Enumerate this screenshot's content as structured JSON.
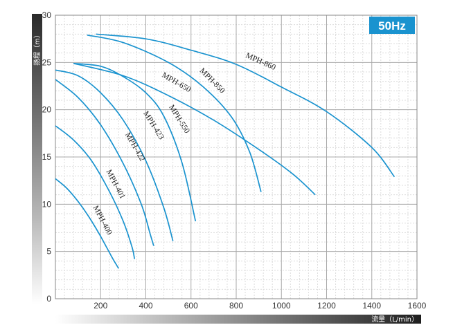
{
  "chart_data": {
    "type": "line",
    "title": "",
    "frequency_badge": "50Hz",
    "xlabel": "流量（L/min）",
    "ylabel": "扬程（m）",
    "xlim": [
      0,
      1600
    ],
    "ylim": [
      0,
      30
    ],
    "x_ticks": [
      "200",
      "400",
      "600",
      "800",
      "1000",
      "1200",
      "1400",
      "1600"
    ],
    "y_ticks": [
      "0",
      "5",
      "10",
      "15",
      "20",
      "25",
      "30"
    ],
    "grid": true,
    "series_color": "#1a93cf",
    "series": [
      {
        "name": "MPH-400",
        "x": [
          0,
          50,
          100,
          150,
          200,
          250,
          280
        ],
        "y": [
          12.7,
          11.7,
          10.3,
          8.6,
          6.6,
          4.4,
          3.2
        ]
      },
      {
        "name": "MPH-401",
        "x": [
          0,
          80,
          160,
          240,
          300,
          340,
          350
        ],
        "y": [
          18.3,
          16.8,
          14.6,
          11.3,
          8.2,
          5.4,
          4.2
        ]
      },
      {
        "name": "MPH-422",
        "x": [
          0,
          100,
          200,
          300,
          380,
          420,
          435
        ],
        "y": [
          23.2,
          21.3,
          18.4,
          14.3,
          10.0,
          6.8,
          5.6
        ]
      },
      {
        "name": "MPH-423",
        "x": [
          0,
          100,
          200,
          300,
          400,
          480,
          520
        ],
        "y": [
          24.2,
          23.6,
          21.8,
          18.9,
          14.6,
          9.6,
          6.1
        ]
      },
      {
        "name": "MPH-550",
        "x": [
          80,
          200,
          300,
          400,
          480,
          560,
          620
        ],
        "y": [
          24.9,
          24.6,
          23.5,
          21.8,
          19.3,
          14.4,
          8.2
        ]
      },
      {
        "name": "MPH-650",
        "x": [
          80,
          300,
          500,
          700,
          900,
          1050,
          1150
        ],
        "y": [
          24.9,
          23.6,
          21.5,
          18.9,
          15.8,
          13.2,
          11.0
        ]
      },
      {
        "name": "MPH-850",
        "x": [
          140,
          300,
          500,
          650,
          780,
          860,
          910
        ],
        "y": [
          27.9,
          27.1,
          25.0,
          22.5,
          19.2,
          15.5,
          11.3
        ]
      },
      {
        "name": "MPH-860",
        "x": [
          180,
          400,
          600,
          800,
          1000,
          1200,
          1400,
          1500
        ],
        "y": [
          28.0,
          27.5,
          26.3,
          24.8,
          22.4,
          19.8,
          16.0,
          12.9
        ]
      }
    ]
  }
}
